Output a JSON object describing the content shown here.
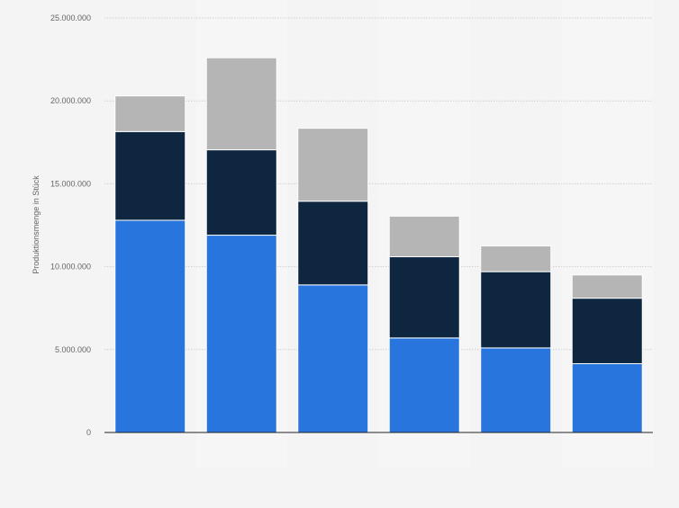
{
  "chart_data": {
    "type": "bar",
    "stacked": true,
    "title": "",
    "xlabel": "",
    "ylabel": "Produktionsmenge in Stück",
    "categories": [
      "",
      "",
      "",
      "",
      "",
      ""
    ],
    "ylim": [
      0,
      25000000
    ],
    "y_ticks": [
      0,
      5000000,
      10000000,
      15000000,
      20000000,
      25000000
    ],
    "y_tick_labels": [
      "0",
      "5.000.000",
      "10.000.000",
      "15.000.000",
      "20.000.000",
      "25.000.000"
    ],
    "grid": true,
    "legend": "none",
    "colors": [
      "#2876dd",
      "#0f2640",
      "#b5b5b5"
    ],
    "series": [
      {
        "values": [
          12800000,
          11900000,
          8900000,
          5700000,
          5100000,
          4150000
        ]
      },
      {
        "values": [
          5350000,
          5150000,
          5050000,
          4900000,
          4600000,
          3950000
        ]
      },
      {
        "values": [
          2150000,
          5550000,
          4400000,
          2450000,
          1550000,
          1400000
        ]
      }
    ]
  }
}
